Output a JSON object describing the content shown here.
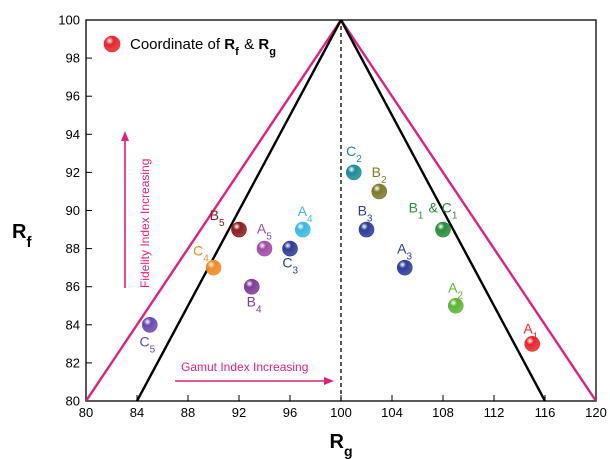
{
  "chart_data": {
    "type": "scatter",
    "xlabel": {
      "main": "R",
      "sub": "g"
    },
    "ylabel": {
      "main": "R",
      "sub": "f"
    },
    "xlim": [
      80,
      120
    ],
    "ylim": [
      80,
      100
    ],
    "xticks": [
      80,
      84,
      88,
      92,
      96,
      100,
      104,
      108,
      112,
      116,
      120
    ],
    "yticks": [
      80,
      82,
      84,
      86,
      88,
      90,
      92,
      94,
      96,
      98,
      100
    ],
    "legend": {
      "placement": "top-left",
      "color": "#e8252a",
      "parts": [
        {
          "t": "Coordinate of ",
          "s": ""
        },
        {
          "t": "R",
          "s": "f",
          "bold": true
        },
        {
          "t": " & ",
          "s": ""
        },
        {
          "t": "R",
          "s": "g",
          "bold": true
        }
      ]
    },
    "boundaries": [
      {
        "name": "outer",
        "color": "#e0207e",
        "points": [
          [
            80,
            80
          ],
          [
            100,
            100
          ],
          [
            120,
            80
          ]
        ]
      },
      {
        "name": "inner",
        "color": "#000000",
        "points": [
          [
            84,
            80
          ],
          [
            100,
            100
          ],
          [
            116,
            80
          ]
        ]
      }
    ],
    "reference_line": {
      "x": 100,
      "y": [
        80,
        100
      ],
      "style": "dashed"
    },
    "points": [
      {
        "x": 115,
        "y": 83,
        "color": "#e8252a",
        "main": "A",
        "sub": "1"
      },
      {
        "x": 109,
        "y": 85,
        "color": "#5cb531",
        "main": "A",
        "sub": "2"
      },
      {
        "x": 105,
        "y": 87,
        "color": "#2c3c98",
        "main": "A",
        "sub": "3"
      },
      {
        "x": 97,
        "y": 89,
        "color": "#3cb8e0",
        "main": "A",
        "sub": "4"
      },
      {
        "x": 94,
        "y": 88,
        "color": "#a04aa8",
        "main": "A",
        "sub": "5"
      },
      {
        "x": 108,
        "y": 89,
        "color": "#2a8c3c",
        "main": "B",
        "sub": "1"
      },
      {
        "x": 103,
        "y": 91,
        "color": "#7e7a28",
        "main": "B",
        "sub": "2"
      },
      {
        "x": 102,
        "y": 89,
        "color": "#2c3c98",
        "main": "B",
        "sub": "3"
      },
      {
        "x": 93,
        "y": 86,
        "color": "#7e3c98",
        "main": "B",
        "sub": "4"
      },
      {
        "x": 92,
        "y": 89,
        "color": "#8c1c20",
        "main": "B",
        "sub": "5"
      },
      {
        "x": 101,
        "y": 92,
        "color": "#1c8c98",
        "main": "C",
        "sub": "2"
      },
      {
        "x": 96,
        "y": 88,
        "color": "#2c3c98",
        "main": "C",
        "sub": "3"
      },
      {
        "x": 90,
        "y": 87,
        "color": "#f08a24",
        "main": "C",
        "sub": "4"
      },
      {
        "x": 85,
        "y": 84,
        "color": "#6a48b0",
        "main": "C",
        "sub": "5"
      }
    ],
    "labels": [
      {
        "parts": [
          {
            "t": "A",
            "s": "1"
          }
        ],
        "color": "#e8252a",
        "x": 114.3,
        "y": 83.55
      },
      {
        "parts": [
          {
            "t": "A",
            "s": "2"
          }
        ],
        "color": "#5cb531",
        "x": 108.4,
        "y": 85.7
      },
      {
        "parts": [
          {
            "t": "A",
            "s": "3"
          }
        ],
        "color": "#2c3c98",
        "x": 104.4,
        "y": 87.75
      },
      {
        "parts": [
          {
            "t": "A",
            "s": "4"
          }
        ],
        "color": "#3cb8e0",
        "x": 96.6,
        "y": 89.7
      },
      {
        "parts": [
          {
            "t": "A",
            "s": "5"
          }
        ],
        "color": "#a04aa8",
        "x": 93.4,
        "y": 88.8
      },
      {
        "parts": [
          {
            "t": "B",
            "s": "1"
          },
          {
            "t": " & ",
            "s": ""
          },
          {
            "t": "C",
            "s": "1"
          }
        ],
        "color": "#2a8c3c",
        "x": 105.3,
        "y": 89.9
      },
      {
        "parts": [
          {
            "t": "B",
            "s": "2"
          }
        ],
        "color": "#7e7a28",
        "x": 102.4,
        "y": 91.75
      },
      {
        "parts": [
          {
            "t": "B",
            "s": "3"
          }
        ],
        "color": "#2c3c98",
        "x": 101.3,
        "y": 89.75
      },
      {
        "parts": [
          {
            "t": "B",
            "s": "4"
          }
        ],
        "color": "#7e3c98",
        "x": 92.6,
        "y": 84.95
      },
      {
        "parts": [
          {
            "t": "B",
            "s": "5"
          }
        ],
        "color": "#8c1c20",
        "x": 89.7,
        "y": 89.5
      },
      {
        "parts": [
          {
            "t": "C",
            "s": "2"
          }
        ],
        "color": "#1c8c98",
        "x": 100.4,
        "y": 92.85
      },
      {
        "parts": [
          {
            "t": "C",
            "s": "3"
          }
        ],
        "color": "#2c3c98",
        "x": 95.4,
        "y": 87.0
      },
      {
        "parts": [
          {
            "t": "C",
            "s": "4"
          }
        ],
        "color": "#f08a24",
        "x": 88.4,
        "y": 87.65
      },
      {
        "parts": [
          {
            "t": "C",
            "s": "5"
          }
        ],
        "color": "#6a48b0",
        "x": 84.2,
        "y": 82.85
      }
    ],
    "annotations": [
      {
        "text": "Fidelity Index Increasing",
        "orientation": "vertical",
        "arrow": "up",
        "color": "#e0207e"
      },
      {
        "text": "Gamut Index Increasing",
        "orientation": "horizontal",
        "arrow": "right",
        "color": "#e0207e"
      }
    ]
  }
}
